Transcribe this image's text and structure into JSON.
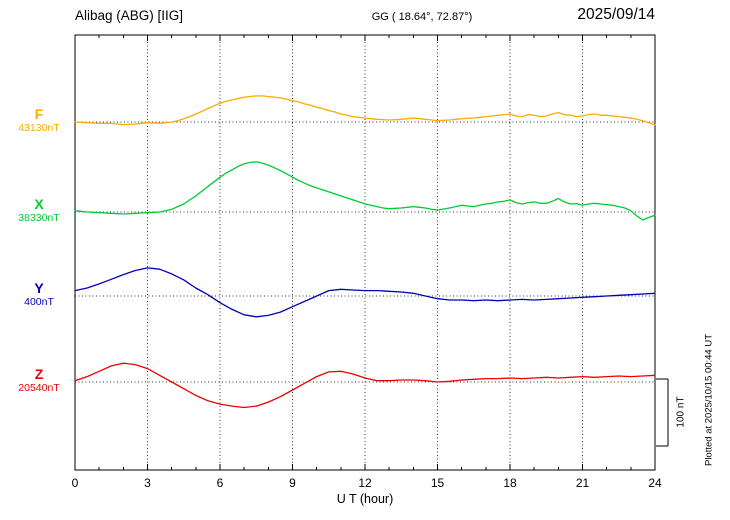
{
  "header": {
    "station": "Alibag (ABG)  [IIG]",
    "coords": "GG ( 18.64°,  72.87°)",
    "date": "2025/09/14"
  },
  "side": {
    "plotted_at": "Plotted at 2025/10/15 00:44 UT"
  },
  "chart_data": {
    "type": "line",
    "title": "Alibag (ABG) [IIG] magnetogram 2025/09/14",
    "xlabel": "U T (hour)",
    "x_range": [
      0,
      24
    ],
    "x_ticks": [
      0,
      3,
      6,
      9,
      12,
      15,
      18,
      21,
      24
    ],
    "grid": "dotted vertical at 3h intervals, dotted horizontal baseline per channel",
    "scale_bar": {
      "label": "100 nT",
      "nT": 100
    },
    "channels": [
      {
        "name": "F",
        "baseline_label": "43130nT",
        "baseline_nT": 43130,
        "color": "#FFAA00",
        "step_hours": 0.25,
        "values_nT_rel": [
          0,
          -0.5,
          -1,
          -1.5,
          -2,
          -2,
          -2,
          -3,
          -4,
          -3.5,
          -3,
          -2,
          -1,
          -1.5,
          -2,
          -1,
          0,
          2,
          5,
          8,
          12,
          16,
          20,
          24,
          28,
          31,
          33,
          35,
          37,
          38,
          39,
          39,
          38,
          37,
          36,
          34,
          32,
          30,
          27,
          25,
          22,
          20,
          17,
          15,
          12,
          10,
          8,
          7,
          6,
          5,
          4,
          3.5,
          3,
          3.5,
          4,
          5,
          6,
          5,
          4,
          3,
          2,
          2.5,
          3,
          4,
          5,
          5.5,
          6,
          7,
          8,
          9,
          10,
          11,
          12,
          9,
          8,
          11,
          10,
          8,
          9,
          12,
          14,
          11,
          10,
          8,
          9,
          11,
          12,
          10,
          10,
          9,
          8,
          7,
          6,
          4,
          2,
          -1,
          -4
        ]
      },
      {
        "name": "X",
        "baseline_label": "38330nT",
        "baseline_nT": 38330,
        "color": "#00CC33",
        "step_hours": 0.25,
        "values_nT_rel": [
          2,
          1,
          0,
          -0.5,
          -1,
          -1.5,
          -2,
          -2.5,
          -3,
          -2.5,
          -2,
          -1.5,
          -1,
          -0.5,
          0,
          2,
          4,
          8,
          12,
          18,
          24,
          31,
          38,
          45,
          52,
          58,
          63,
          68,
          72,
          74,
          75,
          73,
          70,
          66,
          62,
          57,
          52,
          47,
          43,
          39,
          36,
          33,
          30,
          27,
          24,
          21,
          18,
          15,
          12,
          10,
          8,
          6,
          5,
          5.5,
          6,
          7,
          8,
          7,
          6,
          4,
          3,
          4.5,
          6,
          8,
          10,
          9,
          8,
          10,
          12,
          13,
          15,
          16,
          18,
          14,
          12,
          14,
          15,
          13,
          13,
          16,
          20,
          15,
          12,
          12.5,
          10,
          12,
          13,
          12,
          11,
          10,
          8,
          6,
          2,
          -6,
          -12,
          -8,
          -5
        ]
      },
      {
        "name": "Y",
        "baseline_label": "400nT",
        "baseline_nT": 400,
        "color": "#0000BB",
        "step_hours": 0.5,
        "values_nT_rel": [
          8,
          12,
          18,
          25,
          32,
          38,
          42,
          40,
          33,
          24,
          12,
          2,
          -10,
          -20,
          -28,
          -31,
          -29,
          -24,
          -16,
          -8,
          0,
          8,
          10,
          9,
          8,
          8,
          7,
          6,
          4,
          0,
          -4,
          -6,
          -6,
          -7,
          -6,
          -7,
          -6,
          -5,
          -6,
          -5,
          -4,
          -3,
          -2,
          -1,
          0,
          1,
          2,
          3,
          4
        ]
      },
      {
        "name": "Z",
        "baseline_label": "20540nT",
        "baseline_nT": 20540,
        "color": "#EE0000",
        "step_hours": 0.5,
        "values_nT_rel": [
          2,
          8,
          16,
          24,
          28,
          26,
          20,
          10,
          0,
          -10,
          -20,
          -28,
          -33,
          -36,
          -38,
          -36,
          -30,
          -22,
          -12,
          -2,
          8,
          15,
          16,
          12,
          6,
          2,
          2,
          3,
          3,
          2,
          0,
          1,
          3,
          4,
          5,
          5,
          6,
          5,
          6,
          7,
          6,
          7,
          8,
          7,
          8,
          9,
          8,
          9,
          10
        ]
      }
    ]
  }
}
